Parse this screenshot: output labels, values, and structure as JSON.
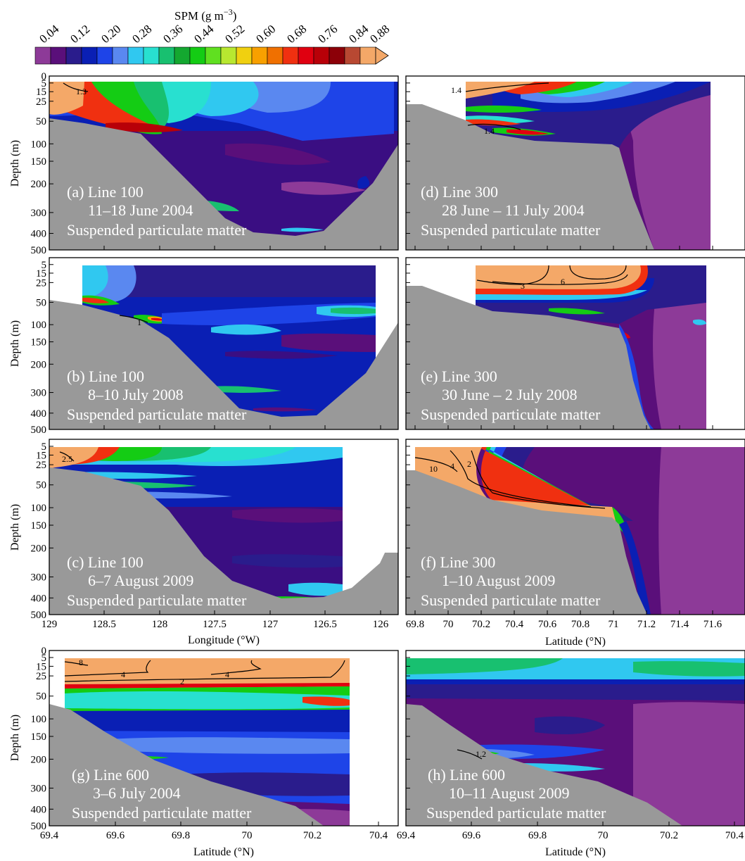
{
  "colorbar": {
    "title": "SPM (g m",
    "title_exp": "−3",
    "title_end": ")",
    "tick_labels": [
      "0.04",
      "0.12",
      "0.20",
      "0.28",
      "0.36",
      "0.44",
      "0.52",
      "0.60",
      "0.68",
      "0.76",
      "0.84",
      "0.88"
    ],
    "colors": [
      "#8d3a98",
      "#5a0f7a",
      "#2a1c8c",
      "#0a1fb4",
      "#1e44e8",
      "#5a88f0",
      "#30c8f0",
      "#28e0d0",
      "#18c070",
      "#14a830",
      "#14cc14",
      "#60e020",
      "#b8e830",
      "#f0d010",
      "#f8a000",
      "#f07000",
      "#f03010",
      "#e00010",
      "#b80008",
      "#8c0008",
      "#b84832",
      "#f4a868"
    ]
  },
  "axes": {
    "depth_label": "Depth (m)",
    "depth_ticks": [
      "0",
      "5",
      "15",
      "25",
      "50",
      "100",
      "150",
      "200",
      "300",
      "400",
      "500"
    ],
    "lon_label": "Longitude (°W)",
    "lon_ticks": [
      "129",
      "128.5",
      "128",
      "127.5",
      "127",
      "126.5",
      "126"
    ],
    "lat_label": "Latitude (°N)",
    "lat_ticks_300": [
      "69.8",
      "70",
      "70.2",
      "70.4",
      "70.6",
      "70.8",
      "71",
      "71.2",
      "71.4",
      "71.6"
    ],
    "lat_ticks_600": [
      "69.4",
      "69.6",
      "69.8",
      "70",
      "70.2",
      "70.4"
    ]
  },
  "chart_data": [
    {
      "type": "heatmap",
      "panel": "a",
      "line": "(a) Line 100",
      "dates": "11–18 June 2004",
      "variable": "Suspended particulate matter",
      "contours": [
        "1.3"
      ]
    },
    {
      "type": "heatmap",
      "panel": "b",
      "line": "(b) Line 100",
      "dates": "8–10 July 2008",
      "variable": "Suspended particulate matter",
      "contours": [
        "1"
      ]
    },
    {
      "type": "heatmap",
      "panel": "c",
      "line": "(c) Line 100",
      "dates": "6–7 August 2009",
      "variable": "Suspended particulate matter",
      "contours": [
        "2.5"
      ]
    },
    {
      "type": "heatmap",
      "panel": "d",
      "line": "(d) Line 300",
      "dates": "28 June – 11 July 2004",
      "variable": "Suspended particulate matter",
      "contours": [
        "1.4",
        "1.4"
      ]
    },
    {
      "type": "heatmap",
      "panel": "e",
      "line": "(e) Line 300",
      "dates": "30 June – 2 July 2008",
      "variable": "Suspended particulate matter",
      "contours": [
        "3",
        "6"
      ]
    },
    {
      "type": "heatmap",
      "panel": "f",
      "line": "(f) Line 300",
      "dates": "1–10 August 2009",
      "variable": "Suspended particulate matter",
      "contours": [
        "10",
        "4",
        "2"
      ]
    },
    {
      "type": "heatmap",
      "panel": "g",
      "line": "(g) Line 600",
      "dates": "3–6 July 2004",
      "variable": "Suspended particulate matter",
      "contours": [
        "8",
        "4",
        "4",
        "2"
      ]
    },
    {
      "type": "heatmap",
      "panel": "h",
      "line": "(h) Line 600",
      "dates": "10–11 August 2009",
      "variable": "Suspended particulate matter",
      "contours": [
        "1.2"
      ]
    }
  ]
}
